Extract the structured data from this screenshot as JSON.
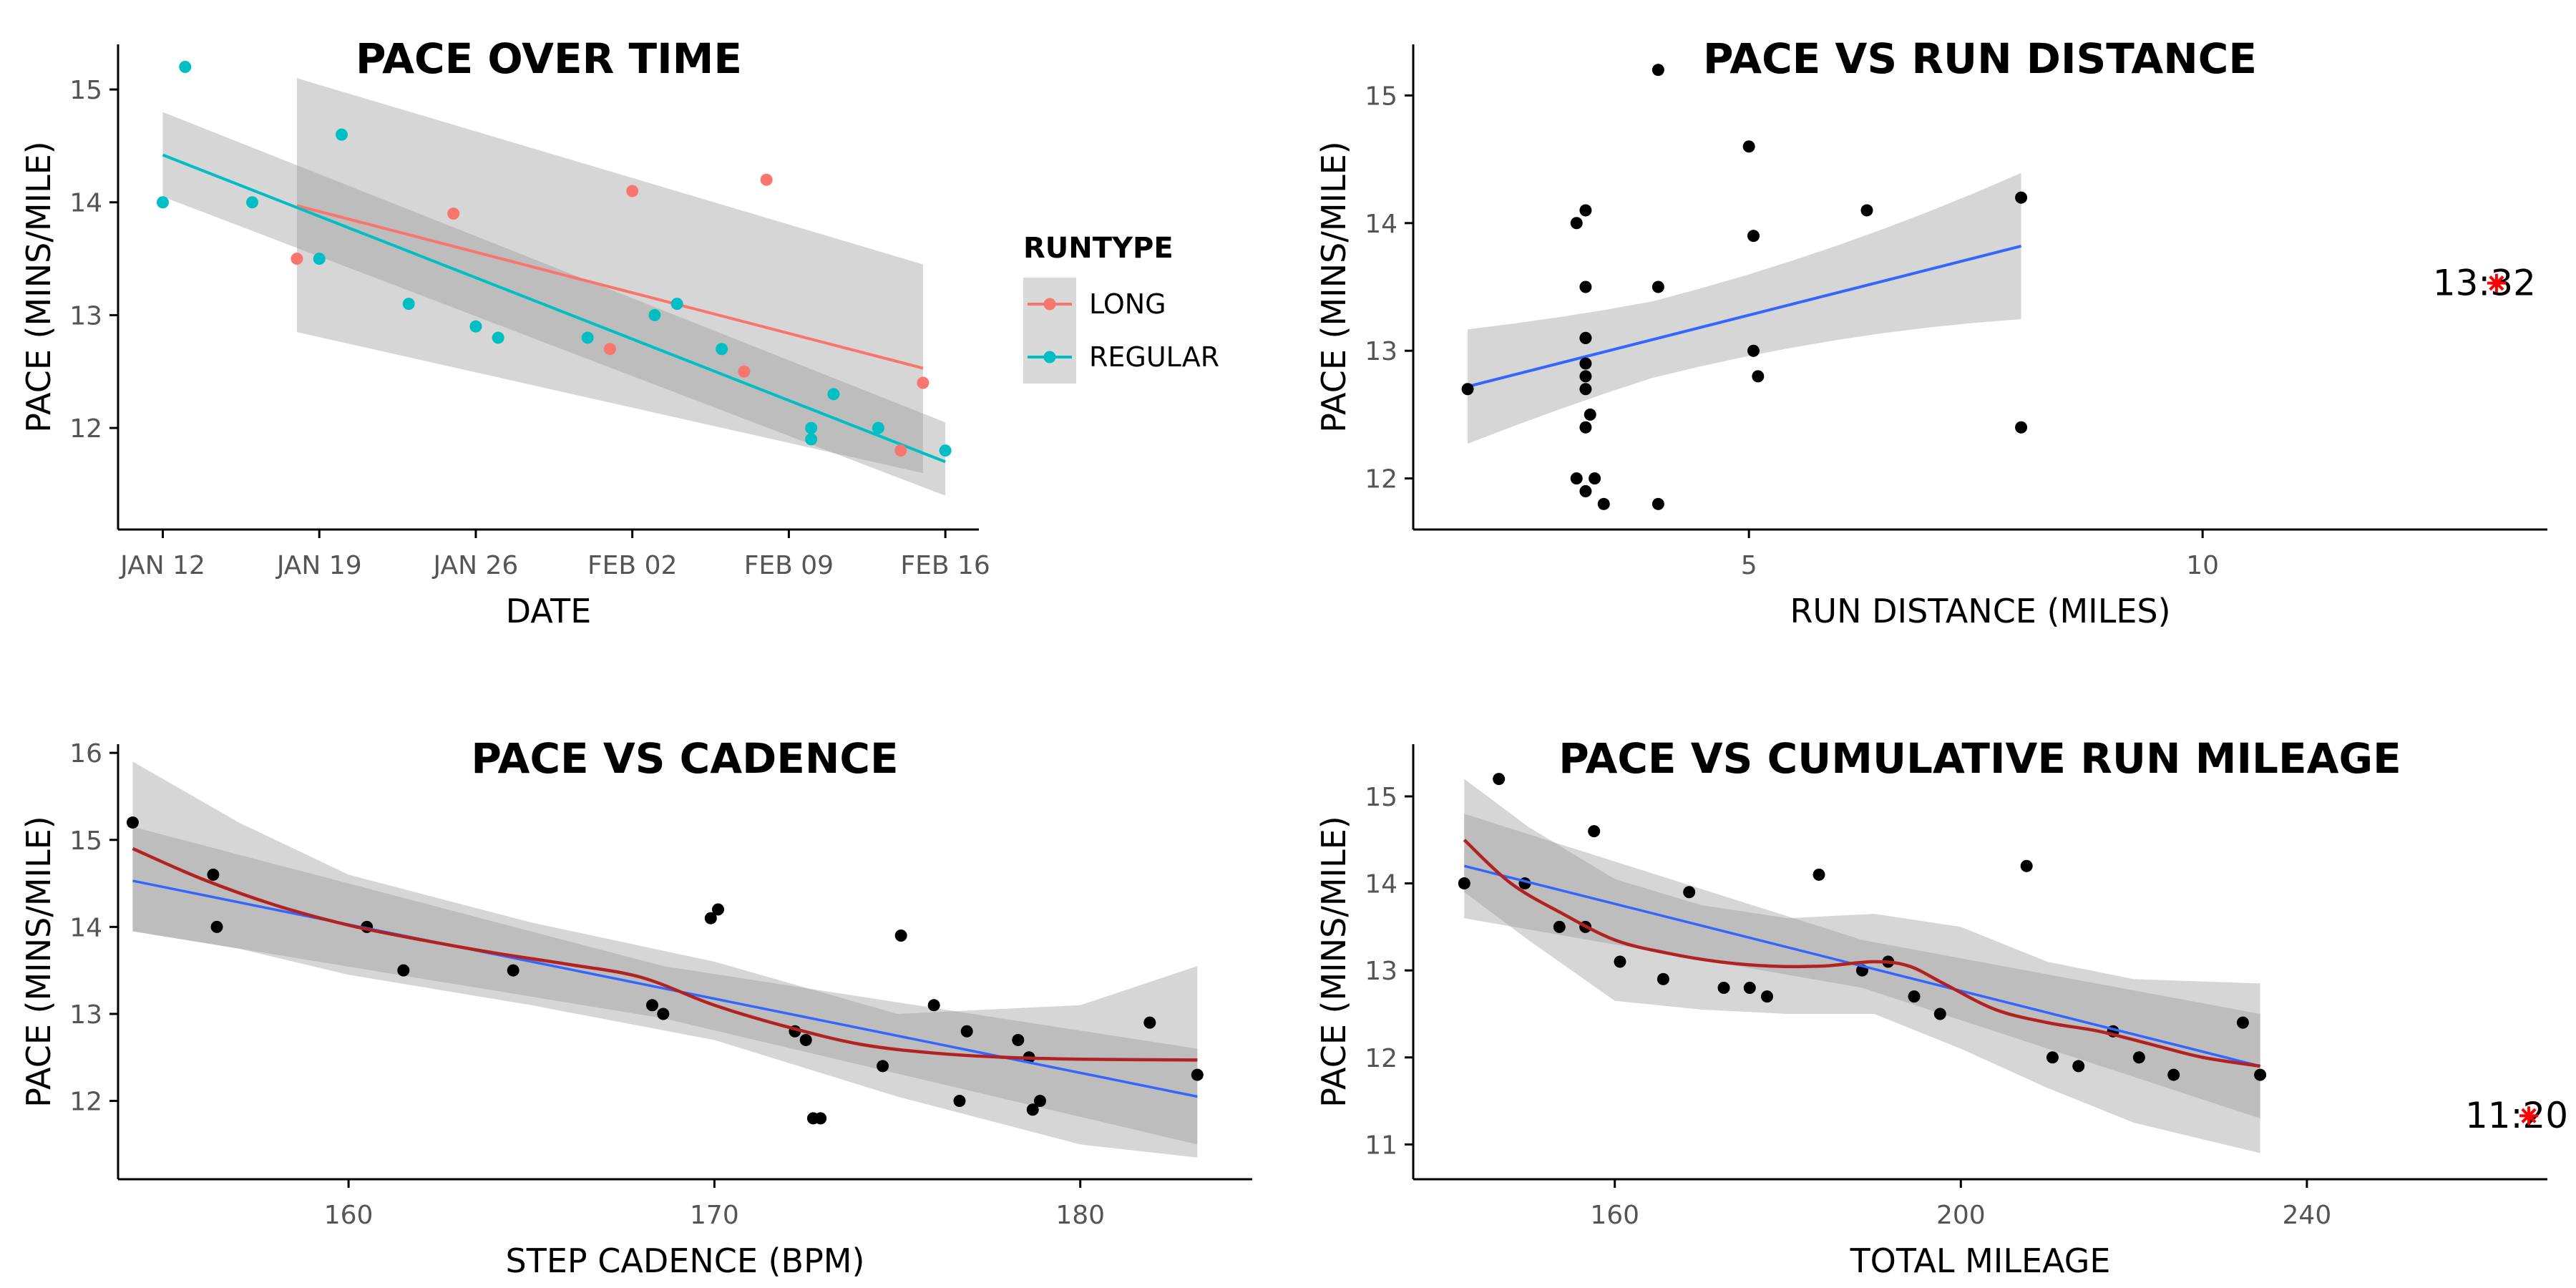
{
  "chart_data": [
    {
      "type": "scatter",
      "title": "PACE OVER TIME",
      "xlabel": "DATE",
      "ylabel": "PACE (MINS/MILE)",
      "x_ticks": [
        "JAN 12",
        "JAN 19",
        "JAN 26",
        "FEB 02",
        "FEB 09",
        "FEB 16"
      ],
      "x_tick_days": [
        0,
        7,
        14,
        21,
        28,
        35
      ],
      "xlim_days": [
        -2,
        36.5
      ],
      "ylim": [
        11.1,
        15.4
      ],
      "y_ticks": [
        12,
        13,
        14,
        15
      ],
      "grid": false,
      "legend": {
        "title": "RUNTYPE",
        "position": "right"
      },
      "x_dates_note": "dates in 2015",
      "series": [
        {
          "name": "LONG",
          "color": "#F8766D",
          "points": [
            {
              "x": "2015-01-18",
              "y": 13.5
            },
            {
              "x": "2015-01-25",
              "y": 13.9
            },
            {
              "x": "2015-02-01",
              "y": 12.7
            },
            {
              "x": "2015-02-02",
              "y": 14.1
            },
            {
              "x": "2015-02-07",
              "y": 12.5
            },
            {
              "x": "2015-02-08",
              "y": 14.2
            },
            {
              "x": "2015-02-14",
              "y": 11.8
            },
            {
              "x": "2015-02-15",
              "y": 12.4
            }
          ],
          "fit": {
            "x": [
              "2015-01-18",
              "2015-02-15"
            ],
            "y": [
              13.97,
              12.53
            ]
          },
          "band_lower": [
            12.85,
            11.6
          ],
          "band_upper": [
            15.1,
            13.45
          ]
        },
        {
          "name": "REGULAR",
          "color": "#00BFC4",
          "points": [
            {
              "x": "2015-01-12",
              "y": 14.0
            },
            {
              "x": "2015-01-13",
              "y": 15.2
            },
            {
              "x": "2015-01-16",
              "y": 14.0
            },
            {
              "x": "2015-01-19",
              "y": 13.5
            },
            {
              "x": "2015-01-20",
              "y": 14.6
            },
            {
              "x": "2015-01-23",
              "y": 13.1
            },
            {
              "x": "2015-01-26",
              "y": 12.9
            },
            {
              "x": "2015-01-27",
              "y": 12.8
            },
            {
              "x": "2015-01-31",
              "y": 12.8
            },
            {
              "x": "2015-02-03",
              "y": 13.0
            },
            {
              "x": "2015-02-04",
              "y": 13.1
            },
            {
              "x": "2015-02-06",
              "y": 12.7
            },
            {
              "x": "2015-02-10",
              "y": 12.0
            },
            {
              "x": "2015-02-10",
              "y": 11.9
            },
            {
              "x": "2015-02-11",
              "y": 12.3
            },
            {
              "x": "2015-02-13",
              "y": 12.0
            },
            {
              "x": "2015-02-16",
              "y": 11.8
            }
          ],
          "fit": {
            "x": [
              "2015-01-12",
              "2015-02-16"
            ],
            "y": [
              14.42,
              11.7
            ]
          },
          "band_lower": [
            14.05,
            11.4
          ],
          "band_upper": [
            14.8,
            12.05
          ]
        }
      ]
    },
    {
      "type": "scatter",
      "title": "PACE VS RUN DISTANCE",
      "xlabel": "RUN DISTANCE (MILES)",
      "ylabel": "PACE (MINS/MILE)",
      "x_ticks": [
        5,
        10
      ],
      "xlim": [
        1.3,
        13.8
      ],
      "ylim": [
        11.6,
        15.4
      ],
      "y_ticks": [
        12,
        13,
        14,
        15
      ],
      "grid": false,
      "points": [
        {
          "x": 1.9,
          "y": 12.7
        },
        {
          "x": 3.1,
          "y": 14.0
        },
        {
          "x": 3.2,
          "y": 14.1
        },
        {
          "x": 3.2,
          "y": 13.5
        },
        {
          "x": 3.2,
          "y": 13.1
        },
        {
          "x": 3.2,
          "y": 13.1
        },
        {
          "x": 3.2,
          "y": 12.9
        },
        {
          "x": 3.2,
          "y": 12.8
        },
        {
          "x": 3.2,
          "y": 12.7
        },
        {
          "x": 3.25,
          "y": 12.5
        },
        {
          "x": 3.2,
          "y": 12.4
        },
        {
          "x": 3.1,
          "y": 12.0
        },
        {
          "x": 3.2,
          "y": 11.9
        },
        {
          "x": 3.3,
          "y": 12.0
        },
        {
          "x": 3.4,
          "y": 11.8
        },
        {
          "x": 4.0,
          "y": 15.2
        },
        {
          "x": 4.0,
          "y": 13.5
        },
        {
          "x": 4.0,
          "y": 11.8
        },
        {
          "x": 5.0,
          "y": 14.6
        },
        {
          "x": 5.05,
          "y": 13.9
        },
        {
          "x": 5.05,
          "y": 13.0
        },
        {
          "x": 5.1,
          "y": 12.8
        },
        {
          "x": 6.3,
          "y": 14.1
        },
        {
          "x": 8.0,
          "y": 14.2
        },
        {
          "x": 8.0,
          "y": 12.4
        }
      ],
      "fit": {
        "x": [
          1.9,
          8.0
        ],
        "y": [
          12.72,
          13.82
        ]
      },
      "band_lower": [
        12.1,
        12.8
      ],
      "band_upper": [
        13.3,
        14.85
      ],
      "band_x": [
        1.9,
        8.0
      ],
      "annotation": {
        "label": "13:32",
        "x": 13.2,
        "y": 13.53,
        "marker_color": "#FF0000"
      }
    },
    {
      "type": "scatter",
      "title": "PACE VS CADENCE",
      "xlabel": "STEP CADENCE (BPM)",
      "ylabel": "PACE (MINS/MILE)",
      "x_ticks": [
        160,
        170,
        180
      ],
      "xlim": [
        153.7,
        184.7
      ],
      "ylim": [
        11.1,
        16.1
      ],
      "y_ticks": [
        12,
        13,
        14,
        15,
        16
      ],
      "grid": false,
      "points": [
        {
          "x": 154.1,
          "y": 15.2
        },
        {
          "x": 156.3,
          "y": 14.6
        },
        {
          "x": 156.4,
          "y": 14.0
        },
        {
          "x": 160.5,
          "y": 14.0
        },
        {
          "x": 161.5,
          "y": 13.5
        },
        {
          "x": 164.5,
          "y": 13.5
        },
        {
          "x": 168.3,
          "y": 13.1
        },
        {
          "x": 168.6,
          "y": 13.0
        },
        {
          "x": 169.9,
          "y": 14.1
        },
        {
          "x": 170.1,
          "y": 14.2
        },
        {
          "x": 172.2,
          "y": 12.8
        },
        {
          "x": 172.5,
          "y": 12.7
        },
        {
          "x": 172.7,
          "y": 11.8
        },
        {
          "x": 172.9,
          "y": 11.8
        },
        {
          "x": 174.6,
          "y": 12.4
        },
        {
          "x": 175.1,
          "y": 13.9
        },
        {
          "x": 176.0,
          "y": 13.1
        },
        {
          "x": 176.7,
          "y": 12.0
        },
        {
          "x": 176.9,
          "y": 12.8
        },
        {
          "x": 178.3,
          "y": 12.7
        },
        {
          "x": 178.6,
          "y": 12.5
        },
        {
          "x": 178.7,
          "y": 11.9
        },
        {
          "x": 178.9,
          "y": 12.0
        },
        {
          "x": 181.9,
          "y": 12.9
        },
        {
          "x": 183.2,
          "y": 12.3
        }
      ],
      "linear_fit": {
        "x": [
          154.1,
          183.2
        ],
        "y": [
          14.53,
          12.05
        ],
        "color": "#3366FF"
      },
      "linear_band": {
        "x": [
          154.1,
          168.6,
          183.2
        ],
        "lower": [
          13.95,
          12.95,
          11.5
        ],
        "upper": [
          15.15,
          13.55,
          12.6
        ]
      },
      "loess_fit": {
        "color": "#B22222",
        "x": [
          154.1,
          156,
          158,
          160,
          162,
          164,
          166,
          168,
          170,
          172,
          174,
          176,
          178,
          180,
          183.2
        ],
        "y": [
          14.9,
          14.55,
          14.25,
          14.02,
          13.85,
          13.7,
          13.57,
          13.42,
          13.1,
          12.85,
          12.65,
          12.55,
          12.5,
          12.48,
          12.47
        ]
      },
      "loess_band": {
        "x": [
          154.1,
          157,
          160,
          165,
          170,
          175,
          180,
          183.2
        ],
        "lower": [
          13.95,
          13.75,
          13.45,
          13.1,
          12.7,
          12.05,
          11.5,
          11.35
        ],
        "upper": [
          15.9,
          15.2,
          14.6,
          14.05,
          13.6,
          13.0,
          13.1,
          13.55
        ]
      }
    },
    {
      "type": "scatter",
      "title": "PACE VS CUMULATIVE RUN MILEAGE",
      "xlabel": "TOTAL MILEAGE",
      "ylabel": "PACE (MINS/MILE)",
      "x_ticks": [
        160,
        200,
        240
      ],
      "xlim": [
        136.7,
        267.8
      ],
      "ylim": [
        10.6,
        15.6
      ],
      "y_ticks": [
        11,
        12,
        13,
        14,
        15
      ],
      "grid": false,
      "points": [
        {
          "x": 142.6,
          "y": 14.0
        },
        {
          "x": 146.6,
          "y": 15.2
        },
        {
          "x": 149.6,
          "y": 14.0
        },
        {
          "x": 153.6,
          "y": 13.5
        },
        {
          "x": 156.6,
          "y": 13.5
        },
        {
          "x": 160.6,
          "y": 13.1
        },
        {
          "x": 157.6,
          "y": 14.6
        },
        {
          "x": 165.6,
          "y": 12.9
        },
        {
          "x": 168.6,
          "y": 13.9
        },
        {
          "x": 172.6,
          "y": 12.8
        },
        {
          "x": 175.6,
          "y": 12.8
        },
        {
          "x": 177.6,
          "y": 12.7
        },
        {
          "x": 183.6,
          "y": 14.1
        },
        {
          "x": 188.6,
          "y": 13.0
        },
        {
          "x": 191.6,
          "y": 13.1
        },
        {
          "x": 194.6,
          "y": 12.7
        },
        {
          "x": 197.6,
          "y": 12.5
        },
        {
          "x": 207.6,
          "y": 14.2
        },
        {
          "x": 210.6,
          "y": 12.0
        },
        {
          "x": 213.6,
          "y": 11.9
        },
        {
          "x": 217.6,
          "y": 12.3
        },
        {
          "x": 220.6,
          "y": 12.0
        },
        {
          "x": 224.6,
          "y": 11.8
        },
        {
          "x": 232.6,
          "y": 12.4
        },
        {
          "x": 234.6,
          "y": 11.8
        }
      ],
      "linear_fit": {
        "x": [
          142.6,
          234.6
        ],
        "y": [
          14.2,
          11.9
        ],
        "color": "#3366FF"
      },
      "linear_band": {
        "x": [
          142.6,
          188.6,
          234.6
        ],
        "lower": [
          13.6,
          12.8,
          11.3
        ],
        "upper": [
          14.8,
          13.35,
          12.5
        ]
      },
      "loess_fit": {
        "color": "#B22222",
        "x": [
          142.6,
          148,
          154,
          160,
          166,
          172,
          178,
          184,
          190,
          194,
          198,
          204,
          210,
          216,
          222,
          228,
          234.6
        ],
        "y": [
          14.5,
          14.0,
          13.65,
          13.35,
          13.2,
          13.1,
          13.05,
          13.05,
          13.1,
          13.05,
          12.85,
          12.55,
          12.4,
          12.3,
          12.15,
          12.0,
          11.9
        ]
      },
      "loess_band": {
        "x": [
          142.6,
          150,
          160,
          170,
          180,
          190,
          200,
          210,
          220,
          234.6
        ],
        "lower": [
          13.9,
          13.35,
          12.65,
          12.55,
          12.5,
          12.5,
          12.1,
          11.65,
          11.25,
          10.9
        ],
        "upper": [
          15.2,
          14.65,
          14.05,
          13.75,
          13.6,
          13.65,
          13.5,
          13.1,
          12.9,
          12.85
        ]
      },
      "annotation": {
        "label": "11:20",
        "x": 264,
        "y": 11.33,
        "marker_color": "#FF0000"
      }
    }
  ]
}
